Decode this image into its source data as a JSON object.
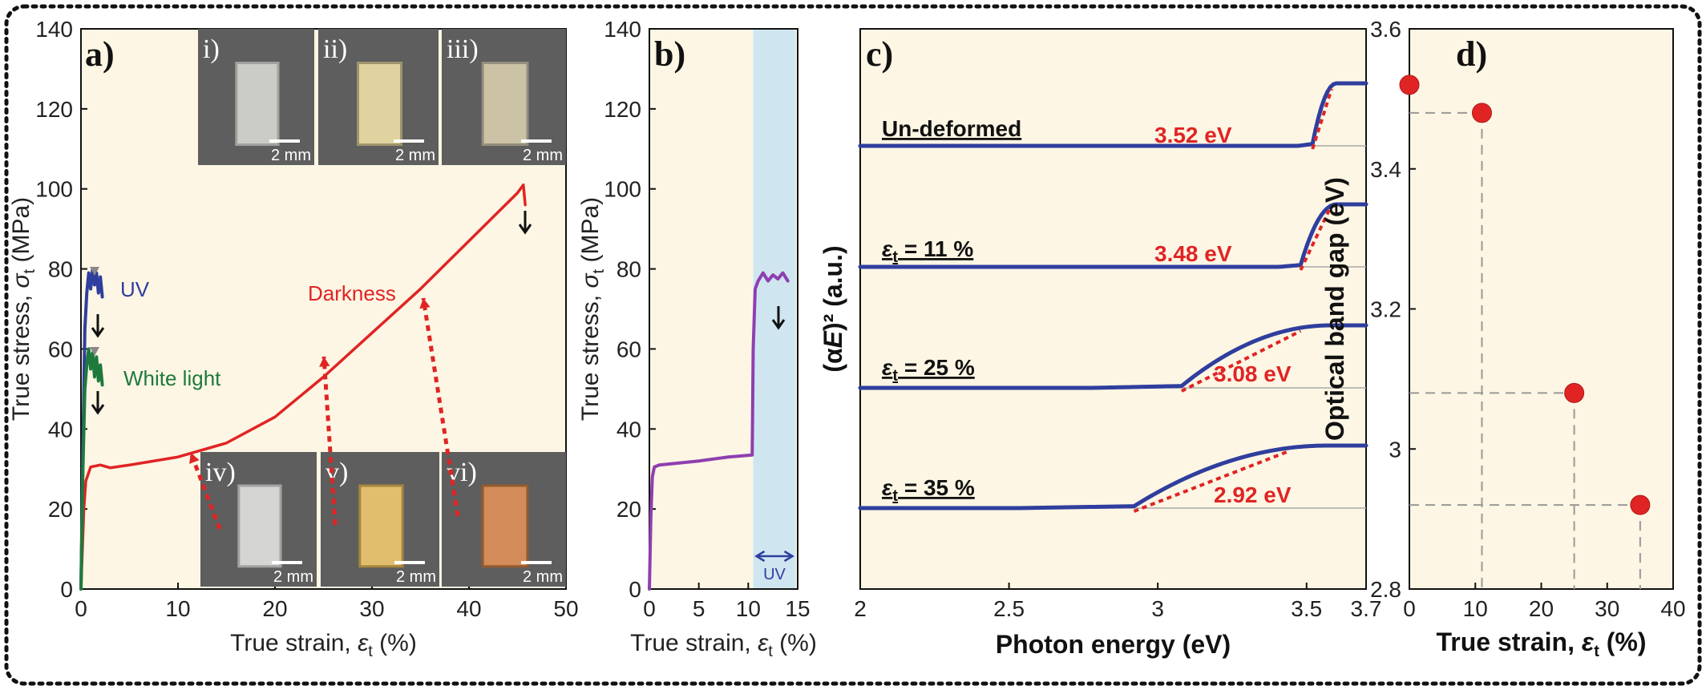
{
  "chart_data": [
    {
      "panel": "a)",
      "type": "line",
      "xlabel_prefix": "True strain, ",
      "xlabel_sym": "ε",
      "xlabel_sub": "t",
      "xlabel_suffix": " (%)",
      "ylabel_prefix": "True stress, ",
      "ylabel_sym": "σ",
      "ylabel_sub": "t",
      "ylabel_suffix": " (MPa)",
      "xlim": [
        0,
        50
      ],
      "ylim": [
        0,
        140
      ],
      "xticks": [
        "0",
        "10",
        "20",
        "30",
        "40",
        "50"
      ],
      "yticks": [
        "0",
        "20",
        "40",
        "60",
        "80",
        "100",
        "120",
        "140"
      ],
      "series": [
        {
          "name": "Darkness",
          "color": "#e02424",
          "x": [
            0,
            0.15,
            0.3,
            0.5,
            1,
            2,
            3,
            5,
            10,
            15,
            20,
            25,
            30,
            35,
            40,
            45,
            45.6,
            45.8
          ],
          "y": [
            0,
            10,
            20,
            27,
            30.5,
            31,
            30.3,
            31,
            33,
            36.5,
            43,
            53,
            64,
            75,
            87,
            99,
            101,
            96
          ]
        },
        {
          "name": "UV",
          "color": "#2f3e9e",
          "x": [
            0,
            0.2,
            0.4,
            0.6,
            0.8,
            1.0,
            1.2,
            1.4,
            1.6,
            1.8,
            2.0,
            2.2
          ],
          "y": [
            0,
            35,
            65,
            74,
            79,
            75,
            80,
            76,
            79,
            74,
            78,
            73
          ]
        },
        {
          "name": "White light",
          "color": "#1e7a3c",
          "x": [
            0,
            0.2,
            0.4,
            0.6,
            0.8,
            1.0,
            1.2,
            1.4,
            1.6,
            1.8,
            2.0,
            2.2
          ],
          "y": [
            0,
            30,
            50,
            56,
            60,
            55,
            59,
            53,
            58,
            52,
            56,
            51
          ]
        }
      ],
      "annotations": [
        "UV",
        "White light",
        "Darkness"
      ],
      "insets": [
        {
          "label": "i)",
          "scale": "2 mm"
        },
        {
          "label": "ii)",
          "scale": "2 mm"
        },
        {
          "label": "iii)",
          "scale": "2 mm"
        },
        {
          "label": "iv)",
          "scale": "2 mm"
        },
        {
          "label": "v)",
          "scale": "2 mm"
        },
        {
          "label": "vi)",
          "scale": "2 mm"
        }
      ]
    },
    {
      "panel": "b)",
      "type": "line",
      "xlabel_prefix": "True strain, ",
      "xlabel_sym": "ε",
      "xlabel_sub": "t",
      "xlabel_suffix": " (%)",
      "ylabel_prefix": "True stress, ",
      "ylabel_sym": "σ",
      "ylabel_sub": "t",
      "ylabel_suffix": " (MPa)",
      "xlim": [
        0,
        15
      ],
      "ylim": [
        0,
        140
      ],
      "xticks": [
        "0",
        "5",
        "10",
        "15"
      ],
      "yticks": [
        "0",
        "20",
        "40",
        "60",
        "80",
        "100",
        "120",
        "140"
      ],
      "uv_region": [
        10.5,
        14.8
      ],
      "uv_label": "UV",
      "series": [
        {
          "color": "#8e3fb0",
          "x": [
            0,
            0.15,
            0.3,
            0.5,
            1,
            3,
            5,
            8,
            10.4,
            10.5,
            10.7,
            11,
            11.5,
            12,
            12.5,
            13,
            13.5,
            14
          ],
          "y": [
            0,
            18,
            28,
            30.5,
            31,
            31.5,
            32,
            33,
            33.5,
            60,
            75,
            77,
            79,
            77,
            78.5,
            77.5,
            79,
            77
          ]
        }
      ]
    },
    {
      "panel": "c)",
      "type": "line",
      "xlabel": "Photon energy (eV)",
      "ylabel_pre": "(α",
      "ylabel_it": "E",
      "ylabel_post": ")² (a.u.)",
      "xlim": [
        2,
        3.7
      ],
      "xticks": [
        "2",
        "2.5",
        "3",
        "3.5",
        "3.7"
      ],
      "series": [
        {
          "name": "Un-deformed",
          "bandgap": "3.52 eV",
          "edge": 3.52,
          "rise": 0.08
        },
        {
          "name_sym": "ε",
          "name_sub": "t",
          "name_rest": " = 11 %",
          "bandgap": "3.48 eV",
          "edge": 3.48,
          "rise": 0.12
        },
        {
          "name_sym": "ε",
          "name_sub": "t",
          "name_rest": " = 25 %",
          "bandgap": "3.08 eV",
          "edge": 3.08,
          "rise": 0.5
        },
        {
          "name_sym": "ε",
          "name_sub": "t",
          "name_rest": " = 35 %",
          "bandgap": "2.92 eV",
          "edge": 2.92,
          "rise": 0.65
        }
      ]
    },
    {
      "panel": "d)",
      "type": "scatter",
      "xlabel_prefix": "True strain, ",
      "xlabel_sym": "ε",
      "xlabel_sub": "t",
      "xlabel_suffix": " (%)",
      "ylabel": "Optical band gap (eV)",
      "xlim": [
        0,
        40
      ],
      "ylim": [
        2.8,
        3.6
      ],
      "xticks": [
        "0",
        "10",
        "20",
        "30",
        "40"
      ],
      "yticks": [
        "2.8",
        "3",
        "3.2",
        "3.4",
        "3.6"
      ],
      "x": [
        0,
        11,
        25,
        35
      ],
      "y": [
        3.52,
        3.48,
        3.08,
        2.92
      ],
      "marker_color": "#e02424"
    }
  ]
}
